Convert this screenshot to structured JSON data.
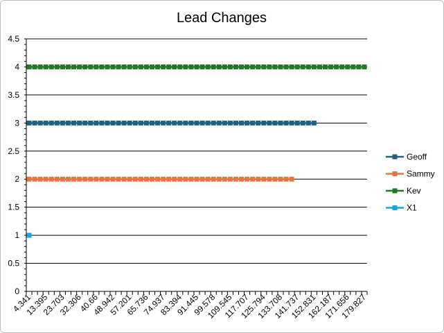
{
  "chart_data": {
    "type": "line",
    "title": "Lead Changes",
    "xlabel": "",
    "ylabel": "",
    "ylim": [
      0,
      4.5
    ],
    "yticks": [
      "0",
      "0.5",
      "1",
      "1.5",
      "2",
      "2.5",
      "3",
      "3.5",
      "4",
      "4.5"
    ],
    "x_tick_labels": [
      "4.341",
      "13.395",
      "23.703",
      "32.306",
      "40.66",
      "48.942",
      "57.201",
      "65.736",
      "74.937",
      "83.394",
      "91.445",
      "99.578",
      "109.545",
      "117.707",
      "125.794",
      "133.708",
      "141.737",
      "152.831",
      "162.187",
      "171.656",
      "179.827"
    ],
    "category_count": 61,
    "grid": true,
    "legend_position": "right",
    "series": [
      {
        "name": "Geoff",
        "color": "#1F5F7F",
        "value": 3,
        "count": 52
      },
      {
        "name": "Sammy",
        "color": "#E8743B",
        "value": 2,
        "count": 48
      },
      {
        "name": "Kev",
        "color": "#1E7A26",
        "value": 4,
        "count": 61
      },
      {
        "name": "X1",
        "color": "#1FA2DB",
        "value": 1,
        "count": 1
      }
    ]
  }
}
